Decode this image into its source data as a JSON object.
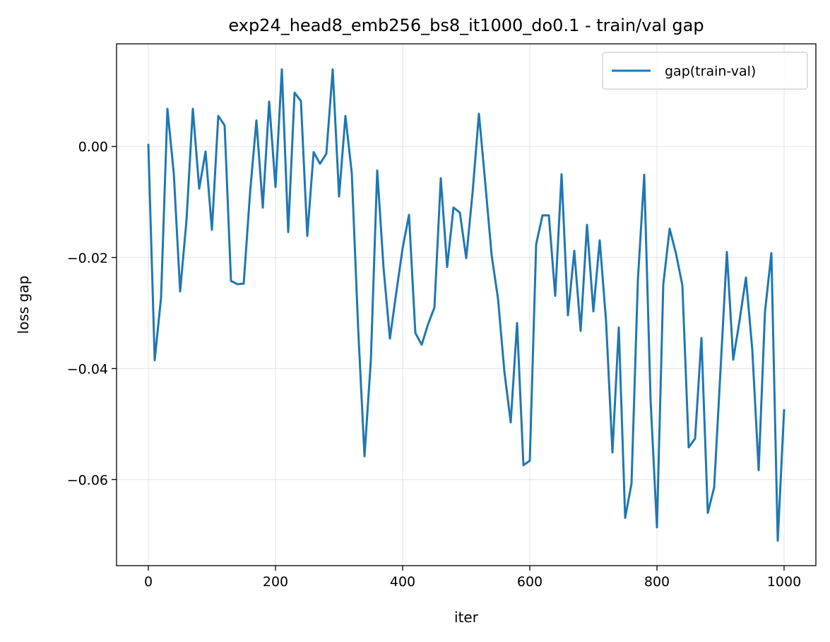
{
  "chart_data": {
    "type": "line",
    "title": "exp24_head8_emb256_bs8_it1000_do0.1 - train/val gap",
    "xlabel": "iter",
    "ylabel": "loss gap",
    "xlim": [
      -50,
      1050
    ],
    "ylim": [
      -0.0755,
      0.0185
    ],
    "xticks": [
      0,
      200,
      400,
      600,
      800,
      1000
    ],
    "xtick_labels": [
      "0",
      "200",
      "400",
      "600",
      "800",
      "1000"
    ],
    "yticks": [
      -0.06,
      -0.04,
      -0.02,
      0.0
    ],
    "ytick_labels": [
      "−0.06",
      "−0.04",
      "−0.02",
      "0.00"
    ],
    "grid": true,
    "legend_position": "top-right",
    "series": [
      {
        "name": "gap(train-val)",
        "color": "#1f77b4",
        "x": [
          0,
          10,
          20,
          30,
          40,
          50,
          60,
          70,
          80,
          90,
          100,
          110,
          120,
          130,
          140,
          150,
          160,
          170,
          180,
          190,
          200,
          210,
          220,
          230,
          240,
          250,
          260,
          270,
          280,
          290,
          300,
          310,
          320,
          330,
          340,
          350,
          360,
          370,
          380,
          390,
          400,
          410,
          420,
          430,
          440,
          450,
          460,
          470,
          480,
          490,
          500,
          510,
          520,
          530,
          540,
          550,
          560,
          570,
          580,
          590,
          600,
          610,
          620,
          630,
          640,
          650,
          660,
          670,
          680,
          690,
          700,
          710,
          720,
          730,
          740,
          750,
          760,
          770,
          780,
          790,
          800,
          810,
          820,
          830,
          840,
          850,
          860,
          870,
          880,
          890,
          900,
          910,
          920,
          930,
          940,
          950,
          960,
          970,
          980,
          990,
          1000
        ],
        "y": [
          0.0003,
          -0.0385,
          -0.0272,
          0.0068,
          -0.0048,
          -0.0261,
          -0.0133,
          0.0068,
          -0.0076,
          -0.0009,
          -0.015,
          0.0055,
          0.0038,
          -0.0242,
          -0.0248,
          -0.0247,
          -0.0083,
          0.0047,
          -0.011,
          0.0081,
          -0.0073,
          0.0139,
          -0.0154,
          0.0097,
          0.0082,
          -0.0161,
          -0.001,
          -0.0031,
          -0.0013,
          0.0139,
          -0.009,
          0.0055,
          -0.0048,
          -0.0327,
          -0.0558,
          -0.0385,
          -0.0043,
          -0.0219,
          -0.0346,
          -0.0263,
          -0.0183,
          -0.0123,
          -0.0336,
          -0.0357,
          -0.032,
          -0.029,
          -0.0057,
          -0.0217,
          -0.011,
          -0.0119,
          -0.0201,
          -0.0083,
          0.0059,
          -0.0066,
          -0.0196,
          -0.0274,
          -0.0405,
          -0.0497,
          -0.0318,
          -0.0574,
          -0.0566,
          -0.0176,
          -0.0124,
          -0.0124,
          -0.0269,
          -0.005,
          -0.0304,
          -0.0188,
          -0.0332,
          -0.0141,
          -0.0297,
          -0.0169,
          -0.0315,
          -0.0551,
          -0.0326,
          -0.0669,
          -0.0607,
          -0.0241,
          -0.0051,
          -0.0457,
          -0.0686,
          -0.0248,
          -0.0148,
          -0.0193,
          -0.025,
          -0.0542,
          -0.0526,
          -0.0345,
          -0.066,
          -0.0614,
          -0.0403,
          -0.019,
          -0.0384,
          -0.0313,
          -0.0236,
          -0.0366,
          -0.0583,
          -0.0297,
          -0.0192,
          -0.071,
          -0.0475
        ]
      }
    ]
  }
}
